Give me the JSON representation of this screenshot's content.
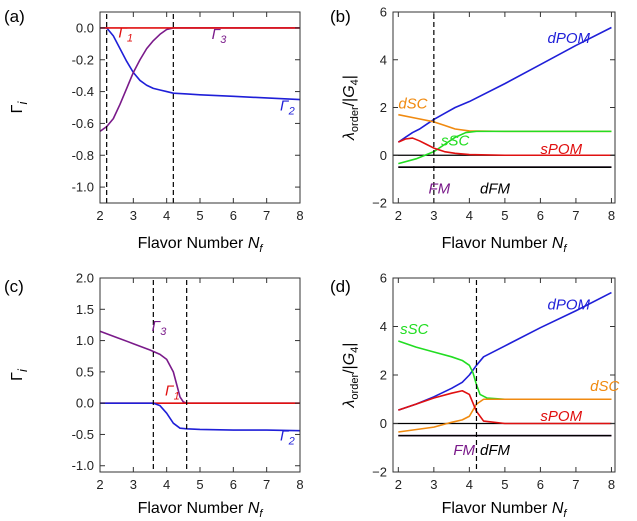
{
  "chart_data": [
    {
      "panel": "(a)",
      "type": "line",
      "xlabel": "Flavor Number N_f",
      "ylabel": "Γ_i",
      "xlim": [
        2,
        8
      ],
      "ylim": [
        -1.1,
        0.1
      ],
      "xticks": [
        2,
        3,
        4,
        5,
        6,
        7,
        8
      ],
      "yticks": [
        -1.0,
        -0.8,
        -0.6,
        -0.4,
        -0.2,
        0.0
      ],
      "ytick_labels": [
        "-1.0",
        "-0.8",
        "-0.6",
        "-0.4",
        "-0.2",
        "0.0"
      ],
      "vlines": [
        2.2,
        4.2
      ],
      "hlines": [],
      "series": [
        {
          "name": "Γ2",
          "color": "#1f1fd8",
          "label_at": [
            7.4,
            -0.52
          ],
          "x": [
            2.0,
            2.2,
            2.4,
            2.6,
            2.8,
            3.0,
            3.2,
            3.4,
            3.6,
            3.8,
            4.0,
            4.2,
            4.6,
            5.0,
            6.0,
            7.0,
            8.0
          ],
          "y": [
            0.0,
            0.0,
            -0.05,
            -0.13,
            -0.21,
            -0.28,
            -0.33,
            -0.36,
            -0.38,
            -0.39,
            -0.4,
            -0.41,
            -0.415,
            -0.42,
            -0.43,
            -0.44,
            -0.45
          ]
        },
        {
          "name": "Γ3",
          "color": "#7a1a8a",
          "label_at": [
            5.35,
            -0.07
          ],
          "x": [
            2.0,
            2.2,
            2.4,
            2.6,
            2.8,
            3.0,
            3.2,
            3.4,
            3.6,
            3.8,
            4.0,
            4.2,
            4.6,
            5.0,
            6.0,
            7.0,
            8.0
          ],
          "y": [
            -0.65,
            -0.62,
            -0.57,
            -0.48,
            -0.38,
            -0.28,
            -0.2,
            -0.13,
            -0.08,
            -0.04,
            -0.01,
            0.0,
            0.0,
            0.0,
            0.0,
            0.0,
            0.0
          ]
        },
        {
          "name": "Γ1",
          "color": "#e01010",
          "label_at": [
            2.55,
            -0.06
          ],
          "x": [
            2.0,
            8.0
          ],
          "y": [
            0.0,
            0.0
          ]
        }
      ]
    },
    {
      "panel": "(b)",
      "type": "line",
      "xlabel": "Flavor Number N_f",
      "ylabel": "λorder/|G4|",
      "xlim": [
        1.85,
        8.1
      ],
      "ylim": [
        -2,
        6
      ],
      "xticks": [
        2,
        3,
        4,
        5,
        6,
        7,
        8
      ],
      "yticks": [
        -2,
        0,
        2,
        4,
        6
      ],
      "ytick_labels": [
        "−2",
        "0",
        "2",
        "4",
        "6"
      ],
      "vlines": [
        3.0
      ],
      "hlines": [
        0.0
      ],
      "series": [
        {
          "name": "dPOM",
          "color": "#1f1fd8",
          "label_at": [
            6.2,
            4.7
          ],
          "x": [
            2.0,
            2.2,
            2.4,
            2.6,
            2.8,
            3.0,
            3.3,
            3.6,
            4.0,
            5.0,
            6.0,
            7.0,
            8.0
          ],
          "y": [
            0.55,
            0.75,
            0.95,
            1.1,
            1.3,
            1.5,
            1.75,
            2.0,
            2.25,
            3.0,
            3.8,
            4.6,
            5.35
          ]
        },
        {
          "name": "dSC",
          "color": "#f08a10",
          "label_at": [
            2.0,
            1.95
          ],
          "x": [
            2.0,
            2.5,
            3.0,
            3.3,
            3.6,
            4.0,
            5.0,
            8.0
          ],
          "y": [
            1.7,
            1.55,
            1.4,
            1.25,
            1.1,
            1.02,
            1.0,
            1.0
          ]
        },
        {
          "name": "sSC",
          "color": "#22dd22",
          "label_at": [
            3.2,
            0.4
          ],
          "x": [
            2.0,
            2.5,
            3.0,
            3.3,
            3.6,
            3.9,
            4.2,
            5.0,
            8.0
          ],
          "y": [
            -0.35,
            -0.15,
            0.15,
            0.45,
            0.75,
            0.95,
            1.0,
            1.0,
            1.0
          ]
        },
        {
          "name": "sPOM",
          "color": "#e01010",
          "label_at": [
            6.0,
            0.05
          ],
          "x": [
            2.0,
            2.2,
            2.4,
            2.6,
            2.8,
            3.0,
            3.3,
            3.6,
            4.0,
            5.0,
            8.0
          ],
          "y": [
            0.55,
            0.68,
            0.72,
            0.6,
            0.45,
            0.3,
            0.15,
            0.08,
            0.03,
            0.0,
            0.0
          ]
        },
        {
          "name": "FM",
          "color": "#7a1a8a",
          "label_at": [
            2.85,
            -1.6
          ],
          "x": [
            2.0,
            8.0
          ],
          "y": [
            -0.5,
            -0.5
          ]
        },
        {
          "name": "dFM",
          "color": "#000000",
          "label_at": [
            4.3,
            -1.6
          ],
          "x": [
            2.0,
            8.0
          ],
          "y": [
            -0.5,
            -0.5
          ]
        }
      ]
    },
    {
      "panel": "(c)",
      "type": "line",
      "xlabel": "Flavor Number N_f",
      "ylabel": "Γ_i",
      "xlim": [
        2,
        8
      ],
      "ylim": [
        -1.1,
        2.0
      ],
      "xticks": [
        2,
        3,
        4,
        5,
        6,
        7,
        8
      ],
      "yticks": [
        -1.0,
        -0.5,
        0.0,
        0.5,
        1.0,
        1.5,
        2.0
      ],
      "ytick_labels": [
        "-1.0",
        "-0.5",
        "0.0",
        "0.5",
        "1.0",
        "1.5",
        "2.0"
      ],
      "vlines": [
        3.6,
        4.6
      ],
      "hlines": [],
      "series": [
        {
          "name": "Γ3",
          "color": "#7a1a8a",
          "label_at": [
            3.55,
            1.15
          ],
          "x": [
            2.0,
            2.5,
            3.0,
            3.5,
            3.8,
            4.0,
            4.2,
            4.3,
            4.4,
            4.5,
            4.6,
            5.0,
            6.0,
            8.0
          ],
          "y": [
            1.15,
            1.05,
            0.95,
            0.85,
            0.78,
            0.7,
            0.5,
            0.3,
            0.1,
            0.02,
            0.0,
            0.0,
            0.0,
            0.0
          ]
        },
        {
          "name": "Γ1",
          "color": "#e01010",
          "label_at": [
            3.95,
            0.12
          ],
          "x": [
            2.0,
            8.0
          ],
          "y": [
            0.0,
            0.0
          ]
        },
        {
          "name": "Γ2",
          "color": "#1f1fd8",
          "label_at": [
            7.4,
            -0.6
          ],
          "x": [
            2.0,
            3.6,
            3.8,
            4.0,
            4.2,
            4.4,
            4.6,
            5.0,
            6.0,
            7.0,
            8.0
          ],
          "y": [
            0.0,
            0.0,
            -0.04,
            -0.16,
            -0.32,
            -0.4,
            -0.41,
            -0.42,
            -0.43,
            -0.43,
            -0.44
          ]
        }
      ]
    },
    {
      "panel": "(d)",
      "type": "line",
      "xlabel": "Flavor Number N_f",
      "ylabel": "λorder/|G4|",
      "xlim": [
        1.85,
        8.1
      ],
      "ylim": [
        -2,
        6
      ],
      "xticks": [
        2,
        3,
        4,
        5,
        6,
        7,
        8
      ],
      "yticks": [
        -2,
        0,
        2,
        4,
        6
      ],
      "ytick_labels": [
        "−2",
        "0",
        "2",
        "4",
        "6"
      ],
      "vlines": [
        4.2
      ],
      "hlines": [
        0.0
      ],
      "series": [
        {
          "name": "dPOM",
          "color": "#1f1fd8",
          "label_at": [
            6.2,
            4.7
          ],
          "x": [
            2.0,
            2.5,
            3.0,
            3.5,
            3.8,
            4.0,
            4.2,
            4.4,
            5.0,
            6.0,
            7.0,
            8.0
          ],
          "y": [
            0.55,
            0.8,
            1.1,
            1.45,
            1.7,
            2.0,
            2.4,
            2.75,
            3.2,
            3.95,
            4.65,
            5.4
          ]
        },
        {
          "name": "sSC",
          "color": "#22dd22",
          "label_at": [
            2.05,
            3.7
          ],
          "x": [
            2.0,
            2.5,
            3.0,
            3.5,
            3.8,
            4.0,
            4.1,
            4.2,
            4.3,
            4.5,
            5.0,
            8.0
          ],
          "y": [
            3.4,
            3.15,
            2.95,
            2.75,
            2.6,
            2.4,
            2.1,
            1.6,
            1.2,
            1.05,
            1.0,
            1.0
          ]
        },
        {
          "name": "dSC",
          "color": "#f08a10",
          "label_at": [
            7.4,
            1.35
          ],
          "x": [
            2.0,
            3.0,
            3.5,
            3.8,
            4.0,
            4.2,
            4.4,
            5.0,
            8.0
          ],
          "y": [
            -0.35,
            -0.15,
            0.05,
            0.15,
            0.3,
            0.8,
            1.0,
            1.0,
            1.0
          ]
        },
        {
          "name": "sPOM",
          "color": "#e01010",
          "label_at": [
            6.0,
            0.1
          ],
          "x": [
            2.0,
            2.5,
            3.0,
            3.5,
            3.8,
            4.0,
            4.2,
            4.4,
            5.0,
            8.0
          ],
          "y": [
            0.55,
            0.8,
            1.05,
            1.25,
            1.35,
            1.2,
            0.5,
            0.1,
            0.0,
            0.0
          ]
        },
        {
          "name": "FM",
          "color": "#7a1a8a",
          "label_at": [
            3.55,
            -1.3
          ],
          "x": [
            2.0,
            8.0
          ],
          "y": [
            -0.5,
            -0.5
          ]
        },
        {
          "name": "dFM",
          "color": "#000000",
          "label_at": [
            4.3,
            -1.3
          ],
          "x": [
            2.0,
            8.0
          ],
          "y": [
            -0.5,
            -0.5
          ]
        }
      ]
    }
  ]
}
